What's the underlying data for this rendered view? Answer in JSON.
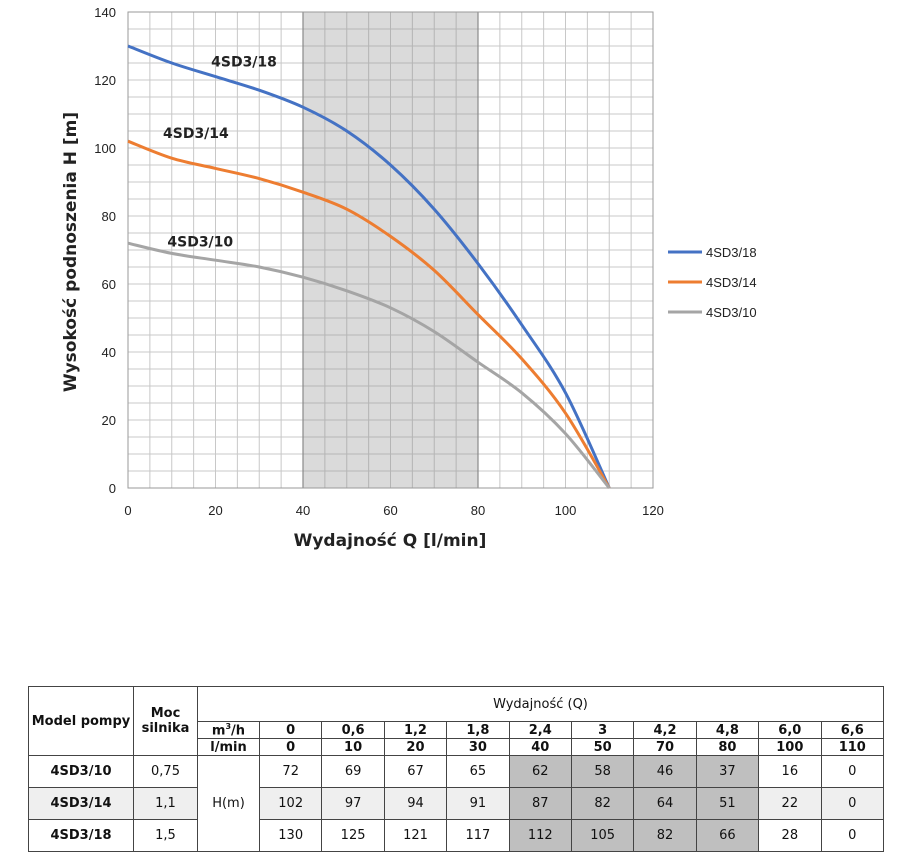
{
  "chart_data": {
    "type": "line",
    "xlabel": "Wydajność Q [l/min]",
    "ylabel": "Wysokość podnoszenia H [m]",
    "xlim": [
      0,
      120
    ],
    "ylim": [
      0,
      140
    ],
    "xticks": [
      0,
      20,
      40,
      60,
      80,
      100,
      120
    ],
    "yticks": [
      0,
      20,
      40,
      60,
      80,
      100,
      120,
      140
    ],
    "grid": true,
    "highlight_band": [
      40,
      80
    ],
    "legend_position": "right",
    "x": [
      0,
      10,
      20,
      30,
      40,
      50,
      60,
      70,
      80,
      90,
      100,
      110
    ],
    "series": [
      {
        "name": "4SD3/18",
        "color": "#4472c4",
        "values": [
          130,
          125,
          121,
          117,
          112,
          105,
          95,
          82,
          66,
          48,
          28,
          0
        ]
      },
      {
        "name": "4SD3/14",
        "color": "#ed7d31",
        "values": [
          102,
          97,
          94,
          91,
          87,
          82,
          74,
          64,
          51,
          38,
          22,
          0
        ]
      },
      {
        "name": "4SD3/10",
        "color": "#a5a5a5",
        "values": [
          72,
          69,
          67,
          65,
          62,
          58,
          53,
          46,
          37,
          28,
          16,
          0
        ]
      }
    ]
  },
  "table": {
    "header": {
      "model": "Model pompy",
      "power": "Moc silnika",
      "flow_title": "Wydajność (Q)",
      "unit_m3h_base": "m",
      "unit_m3h_sup": "3",
      "unit_m3h_rest": "/h",
      "unit_lmin": "l/min",
      "head_unit": "H(m)"
    },
    "m3h": [
      "0",
      "0,6",
      "1,2",
      "1,8",
      "2,4",
      "3",
      "4,2",
      "4,8",
      "6,0",
      "6,6"
    ],
    "lmin": [
      "0",
      "10",
      "20",
      "30",
      "40",
      "50",
      "70",
      "80",
      "100",
      "110"
    ],
    "rows": [
      {
        "model": "4SD3/10",
        "power": "0,75",
        "values": [
          "72",
          "69",
          "67",
          "65",
          "62",
          "58",
          "46",
          "37",
          "16",
          "0"
        ]
      },
      {
        "model": "4SD3/14",
        "power": "1,1",
        "values": [
          "102",
          "97",
          "94",
          "91",
          "87",
          "82",
          "64",
          "51",
          "22",
          "0"
        ]
      },
      {
        "model": "4SD3/18",
        "power": "1,5",
        "values": [
          "130",
          "125",
          "121",
          "117",
          "112",
          "105",
          "82",
          "66",
          "28",
          "0"
        ]
      }
    ]
  }
}
